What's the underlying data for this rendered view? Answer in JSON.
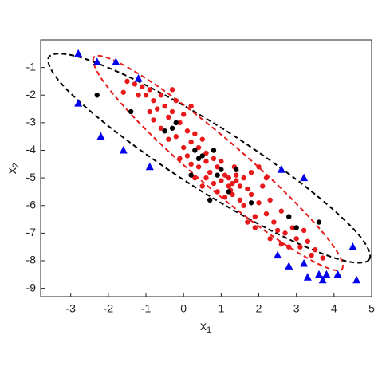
{
  "chart_data": {
    "type": "scatter",
    "xlabel": {
      "text": "x",
      "sub": "1"
    },
    "ylabel": {
      "text": "x",
      "sub": "2"
    },
    "xlim": [
      -3.8,
      5
    ],
    "ylim": [
      -9.3,
      0
    ],
    "xticks": [
      -3,
      -2,
      -1,
      0,
      1,
      2,
      3,
      4,
      5
    ],
    "yticks": [
      -9,
      -8,
      -7,
      -6,
      -5,
      -4,
      -3,
      -2,
      -1
    ],
    "series": [
      {
        "marker": "ellipse",
        "color": "#000000",
        "dashed": true,
        "x": [
          4.94,
          4.6,
          3.2,
          1.14,
          -1.06,
          -2.78,
          -3.58,
          -3.24,
          -1.84,
          0.23,
          2.42,
          4.14
        ],
        "values": [
          -7.95,
          -6.97,
          -5.27,
          -3.3,
          -1.6,
          -0.62,
          -0.62,
          -1.6,
          -3.29,
          -5.27,
          -6.97,
          -7.95
        ]
      },
      {
        "marker": "ellipse",
        "color": "#e8191b",
        "dashed": true,
        "x": [
          4.21,
          3.98,
          2.92,
          1.33,
          -0.37,
          -1.73,
          -2.38,
          -2.15,
          -1.09,
          0.5,
          2.2,
          3.56
        ],
        "values": [
          -8.31,
          -7.46,
          -5.82,
          -3.81,
          -1.98,
          -0.82,
          -0.62,
          -1.47,
          -3.13,
          -5.13,
          -6.95,
          -8.1
        ]
      },
      {
        "marker": "dot",
        "color": "#e8191b",
        "x": [
          -1.5,
          -1.3,
          -1.1,
          -1.0,
          -0.9,
          -0.8,
          -1.2,
          -0.7,
          -0.6,
          -0.5,
          -0.4,
          -0.3,
          -0.2,
          -0.1,
          0.0,
          0.1,
          -0.8,
          -0.6,
          -0.4,
          -0.2,
          0.2,
          0.3,
          0.4,
          0.5,
          0.6,
          0.1,
          0.2,
          0.4,
          0.6,
          0.7,
          0.8,
          0.9,
          1.0,
          1.1,
          1.2,
          1.3,
          1.4,
          1.5,
          1.6,
          1.7,
          1.2,
          1.0,
          0.8,
          0.6,
          0.9,
          1.1,
          1.3,
          1.5,
          1.6,
          1.8,
          2.0,
          2.1,
          2.3,
          1.4,
          1.25,
          1.35,
          2.2,
          2.4,
          2.6,
          2.5,
          2.7,
          2.9,
          3.0,
          3.1,
          3.3,
          3.4,
          3.5,
          3.7,
          2.8,
          2.6,
          1.9,
          1.7,
          1.9,
          2.3,
          0.5,
          0.3,
          -0.1,
          0.0,
          -0.9,
          -1.6,
          1.8,
          2.0,
          2.2,
          -0.3,
          0.2,
          3.2
        ],
        "values": [
          -1.5,
          -1.6,
          -1.7,
          -2.0,
          -1.8,
          -2.2,
          -2.0,
          -2.5,
          -2.0,
          -2.4,
          -2.8,
          -2.6,
          -2.2,
          -3.0,
          -2.7,
          -3.3,
          -2.9,
          -3.2,
          -3.6,
          -3.5,
          -3.7,
          -3.4,
          -3.9,
          -3.6,
          -4.1,
          -4.2,
          -4.5,
          -4.6,
          -4.4,
          -4.8,
          -4.3,
          -4.6,
          -4.4,
          -4.9,
          -5.0,
          -5.2,
          -4.9,
          -5.3,
          -5.0,
          -5.4,
          -5.3,
          -5.1,
          -5.2,
          -5.0,
          -5.5,
          -5.7,
          -5.6,
          -5.8,
          -6.0,
          -5.6,
          -5.9,
          -5.3,
          -5.8,
          -5.1,
          -5.45,
          -4.6,
          -6.3,
          -6.6,
          -6.2,
          -6.9,
          -7.0,
          -6.8,
          -7.2,
          -7.5,
          -7.3,
          -7.8,
          -7.6,
          -7.9,
          -7.5,
          -7.4,
          -6.4,
          -6.6,
          -6.8,
          -7.2,
          -5.3,
          -5.0,
          -4.3,
          -3.9,
          -2.6,
          -1.9,
          -4.8,
          -4.6,
          -5.0,
          -1.8,
          -2.4,
          -6.9
        ]
      },
      {
        "marker": "dot",
        "color": "#000000",
        "x": [
          -2.3,
          -1.4,
          -0.3,
          -0.2,
          -0.5,
          0.3,
          0.4,
          0.5,
          0.8,
          1.0,
          0.9,
          1.4,
          0.7,
          1.2,
          2.8,
          3.0,
          3.6,
          1.8,
          0.2
        ],
        "values": [
          -2.0,
          -2.6,
          -3.2,
          -3.0,
          -3.3,
          -4.0,
          -4.3,
          -4.2,
          -4.0,
          -4.7,
          -4.9,
          -4.7,
          -5.8,
          -5.5,
          -6.4,
          -6.8,
          -6.6,
          -5.9,
          -4.9
        ]
      },
      {
        "marker": "triangle",
        "color": "#0000ee",
        "x": [
          -2.8,
          -2.3,
          -1.8,
          -2.8,
          -2.2,
          -1.6,
          -1.2,
          -0.9,
          2.6,
          3.2,
          2.5,
          2.8,
          3.2,
          3.3,
          3.6,
          3.7,
          3.8,
          4.1,
          4.5,
          4.6
        ],
        "values": [
          -0.5,
          -0.8,
          -0.8,
          -2.3,
          -3.5,
          -4.0,
          -1.4,
          -4.6,
          -4.7,
          -5.0,
          -7.8,
          -8.2,
          -8.1,
          -8.6,
          -8.5,
          -8.7,
          -8.5,
          -8.5,
          -7.5,
          -8.7
        ]
      }
    ]
  }
}
